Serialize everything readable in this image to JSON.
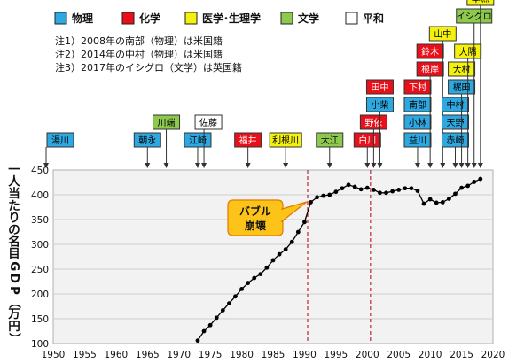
{
  "legend": [
    {
      "label": "物理",
      "color": "#2ea8e0"
    },
    {
      "label": "化学",
      "color": "#e8101a"
    },
    {
      "label": "医学･生理学",
      "color": "#f4f10c"
    },
    {
      "label": "文学",
      "color": "#8cc94c"
    },
    {
      "label": "平和",
      "color": "#ffffff"
    }
  ],
  "notes": [
    "注1）2008年の南部（物理）は米国籍",
    "注2）2014年の中村（物理）は米国籍",
    "注3）2017年のイシグロ（文学）は英国籍"
  ],
  "callout": {
    "line1": "バブル",
    "line2": "崩壊"
  },
  "chart_data": {
    "type": "line",
    "ylabel": "一人当たりの名目GDP（万円）",
    "xlim": [
      1950,
      2020
    ],
    "ylim": [
      100,
      450
    ],
    "xticks": [
      1950,
      1955,
      1960,
      1965,
      1970,
      1975,
      1980,
      1985,
      1990,
      1995,
      2000,
      2005,
      2010,
      2015,
      2020
    ],
    "yticks": [
      100,
      150,
      200,
      250,
      300,
      350,
      400,
      450
    ],
    "grid": "horizontal",
    "vlines": [
      1990.5,
      2000.5
    ],
    "series": [
      {
        "x": [
          1973,
          1974,
          1975,
          1976,
          1977,
          1978,
          1979,
          1980,
          1981,
          1982,
          1983,
          1984,
          1985,
          1986,
          1987,
          1988,
          1989,
          1990,
          1991,
          1992,
          1993,
          1994,
          1995,
          1996,
          1997,
          1998,
          1999,
          2000,
          2001,
          2002,
          2003,
          2004,
          2005,
          2006,
          2007,
          2008,
          2009,
          2010,
          2011,
          2012,
          2013,
          2014,
          2015,
          2016,
          2017,
          2018
        ],
        "y": [
          106,
          125,
          137,
          152,
          167,
          181,
          195,
          210,
          222,
          232,
          240,
          253,
          268,
          280,
          290,
          305,
          325,
          345,
          385,
          395,
          398,
          400,
          406,
          413,
          420,
          416,
          411,
          414,
          410,
          404,
          404,
          407,
          410,
          413,
          413,
          408,
          382,
          391,
          384,
          385,
          392,
          402,
          414,
          418,
          426,
          432
        ]
      }
    ]
  },
  "laureates": [
    {
      "name": "湯川",
      "year": 1949,
      "field": "物理"
    },
    {
      "name": "朝永",
      "year": 1965,
      "field": "物理"
    },
    {
      "name": "川端",
      "year": 1968,
      "field": "文学"
    },
    {
      "name": "江崎",
      "year": 1973,
      "field": "物理"
    },
    {
      "name": "佐藤",
      "year": 1974,
      "field": "平和"
    },
    {
      "name": "福井",
      "year": 1981,
      "field": "化学"
    },
    {
      "name": "利根川",
      "year": 1987,
      "field": "医学･生理学"
    },
    {
      "name": "大江",
      "year": 1994,
      "field": "文学"
    },
    {
      "name": "白川",
      "year": 2000,
      "field": "化学"
    },
    {
      "name": "野依",
      "year": 2001,
      "field": "化学"
    },
    {
      "name": "小柴",
      "year": 2002,
      "field": "物理"
    },
    {
      "name": "田中",
      "year": 2002,
      "field": "化学"
    },
    {
      "name": "益川",
      "year": 2008,
      "field": "物理"
    },
    {
      "name": "小林",
      "year": 2008,
      "field": "物理"
    },
    {
      "name": "南部",
      "year": 2008,
      "field": "物理"
    },
    {
      "name": "下村",
      "year": 2008,
      "field": "化学"
    },
    {
      "name": "根岸",
      "year": 2010,
      "field": "化学"
    },
    {
      "name": "鈴木",
      "year": 2010,
      "field": "化学"
    },
    {
      "name": "山中",
      "year": 2012,
      "field": "医学･生理学"
    },
    {
      "name": "赤崎",
      "year": 2014,
      "field": "物理"
    },
    {
      "name": "天野",
      "year": 2014,
      "field": "物理"
    },
    {
      "name": "中村",
      "year": 2014,
      "field": "物理"
    },
    {
      "name": "梶田",
      "year": 2015,
      "field": "物理"
    },
    {
      "name": "大村",
      "year": 2015,
      "field": "医学･生理学"
    },
    {
      "name": "大隅",
      "year": 2016,
      "field": "医学･生理学"
    },
    {
      "name": "イシグロ",
      "year": 2017,
      "field": "文学"
    },
    {
      "name": "本庶",
      "year": 2018,
      "field": "医学･生理学"
    }
  ]
}
